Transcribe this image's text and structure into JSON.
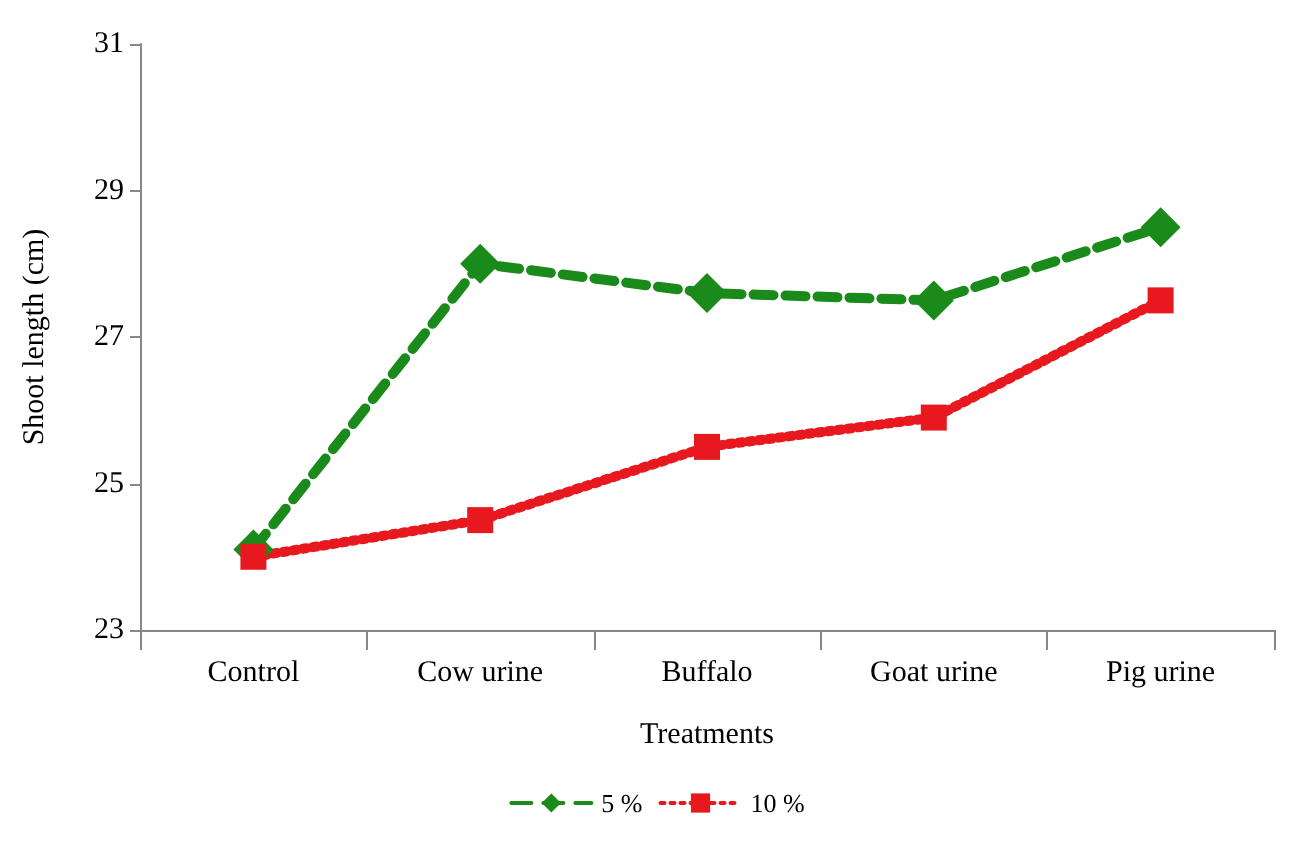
{
  "chart_data": {
    "type": "line",
    "xlabel": "Treatments",
    "ylabel": "Shoot length (cm)",
    "categories": [
      "Control",
      "Cow urine",
      "Buffalo",
      "Goat urine",
      "Pig urine"
    ],
    "series": [
      {
        "name": "5 %",
        "color": "#1a8a1a",
        "values": [
          24.1,
          28.0,
          27.6,
          27.5,
          28.5
        ],
        "marker": "diamond",
        "line_style": "dashed"
      },
      {
        "name": "10 %",
        "color": "#e8191e",
        "values": [
          24.0,
          24.5,
          25.5,
          25.9,
          27.5
        ],
        "marker": "square",
        "line_style": "dotted"
      }
    ],
    "ylim": [
      23,
      31
    ],
    "yticks": [
      23,
      25,
      27,
      29,
      31
    ],
    "grid": false,
    "legend": "bottom"
  }
}
